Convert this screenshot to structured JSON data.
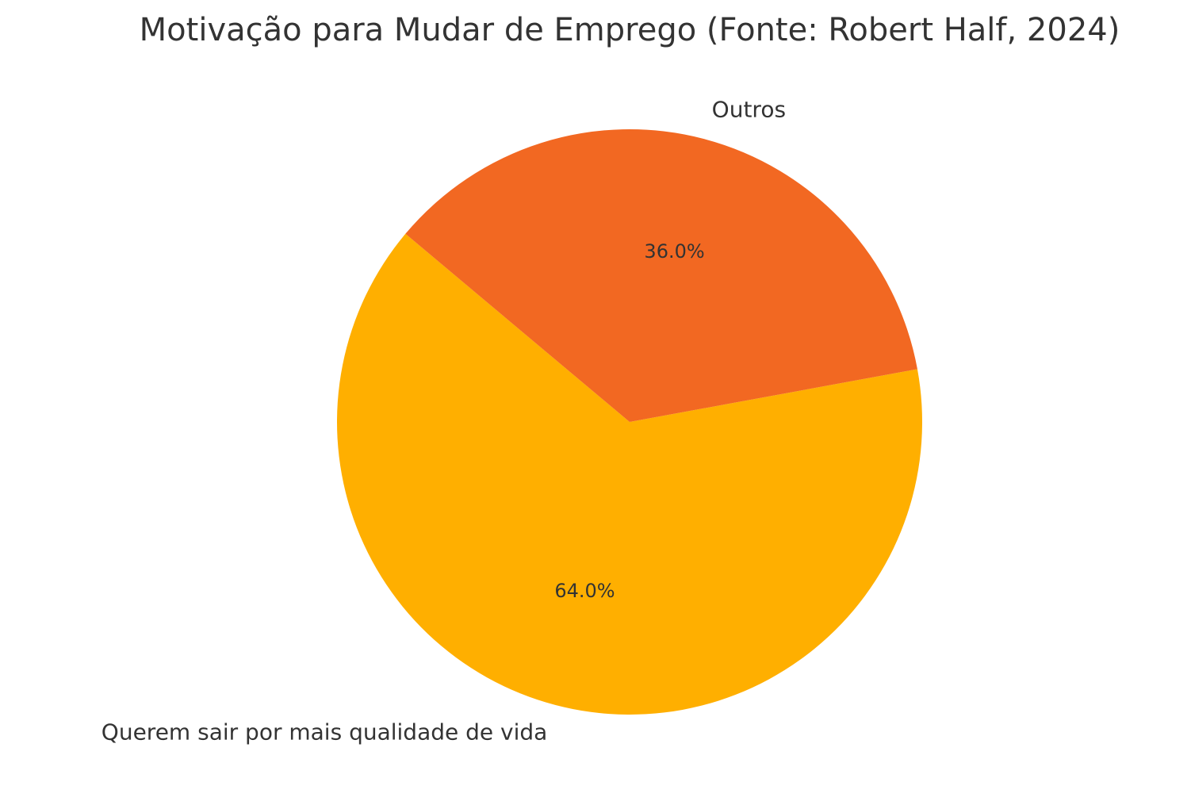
{
  "chart_data": {
    "type": "pie",
    "title": "Motivação para Mudar de Emprego (Fonte: Robert Half, 2024)",
    "categories": [
      "Querem sair por mais qualidade de vida",
      "Outros"
    ],
    "values": [
      64,
      36
    ],
    "value_labels": [
      "64.0%",
      "36.0%"
    ],
    "colors": [
      "#ffaf00",
      "#f26822"
    ]
  }
}
